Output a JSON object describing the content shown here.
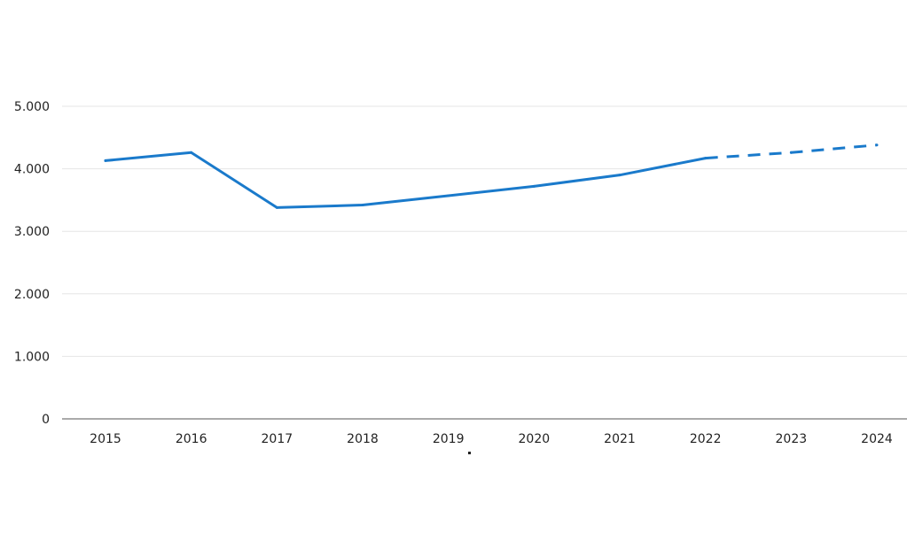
{
  "chart_data": {
    "type": "line",
    "title": "",
    "xlabel": "",
    "ylabel": "",
    "categories": [
      "2015",
      "2016",
      "2017",
      "2018",
      "2019",
      "2020",
      "2021",
      "2022",
      "2023",
      "2024"
    ],
    "series": [
      {
        "values": [
          4130,
          4260,
          3380,
          3420,
          3570,
          3720,
          3900,
          4170,
          4260,
          4380
        ],
        "color": "#1a7acb",
        "solid_through": "2022",
        "dashed_from": "2022"
      }
    ],
    "ylim": [
      0,
      5000
    ],
    "yticks": [
      0,
      1000,
      2000,
      3000,
      4000,
      5000
    ],
    "ytick_labels": [
      "0",
      "1.000",
      "2.000",
      "3.000",
      "4.000",
      "5.000"
    ],
    "grid": true,
    "legend": "none"
  }
}
